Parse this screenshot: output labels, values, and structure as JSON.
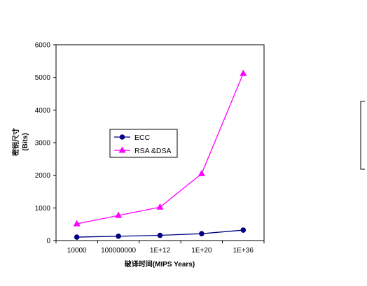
{
  "chart_data": {
    "type": "line",
    "title": "",
    "xlabel": "破译时间(MIPS Years)",
    "ylabel": "密钥尺寸",
    "ylabel_unit": "(Bits)",
    "categories": [
      "10000",
      "100000000",
      "1E+12",
      "1E+20",
      "1E+36"
    ],
    "ylim": [
      0,
      6000
    ],
    "yticks": [
      0,
      1000,
      2000,
      3000,
      4000,
      5000,
      6000
    ],
    "grid": false,
    "legend_position": "center-left",
    "series": [
      {
        "name": "ECC",
        "values": [
          106,
          132,
          160,
          210,
          320
        ],
        "color": "#000080",
        "marker": "circle"
      },
      {
        "name": "RSA &DSA",
        "values": [
          512,
          768,
          1024,
          2048,
          5120
        ],
        "color": "#ff00ff",
        "marker": "triangle"
      }
    ]
  }
}
